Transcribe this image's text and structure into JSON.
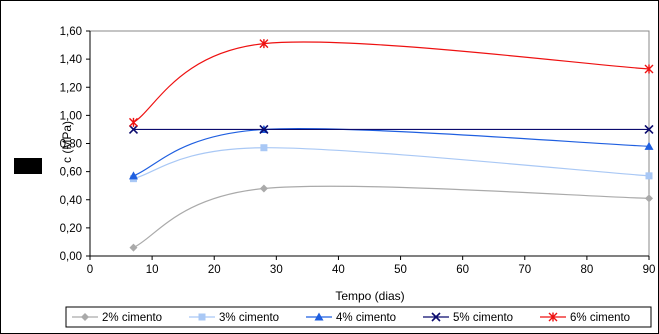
{
  "chart_data": {
    "type": "line",
    "xlabel": "Tempo (dias)",
    "ylabel": "c (MPa)",
    "xlim": [
      0,
      90
    ],
    "ylim": [
      0,
      1.6
    ],
    "x_ticks": [
      "0",
      "10",
      "20",
      "30",
      "40",
      "50",
      "60",
      "70",
      "80",
      "90"
    ],
    "y_ticks": [
      "0,00",
      "0,20",
      "0,40",
      "0,60",
      "0,80",
      "1,00",
      "1,20",
      "1,40",
      "1,60"
    ],
    "x": [
      7,
      28,
      90
    ],
    "grid": "none",
    "legend_position": "bottom",
    "series": [
      {
        "name": "2% cimento",
        "values": [
          0.06,
          0.48,
          0.41
        ],
        "color": "#aaaaaa",
        "marker": "diamond"
      },
      {
        "name": "3% cimento",
        "values": [
          0.55,
          0.77,
          0.57
        ],
        "color": "#a9c8f5",
        "marker": "square"
      },
      {
        "name": "4% cimento",
        "values": [
          0.57,
          0.9,
          0.78
        ],
        "color": "#1f5fe0",
        "marker": "triangle"
      },
      {
        "name": "5% cimento",
        "values": [
          0.9,
          0.9,
          0.9
        ],
        "color": "#0b0b6e",
        "marker": "x"
      },
      {
        "name": "6% cimento",
        "values": [
          0.95,
          1.51,
          1.33
        ],
        "color": "#ee1111",
        "marker": "star"
      }
    ]
  }
}
